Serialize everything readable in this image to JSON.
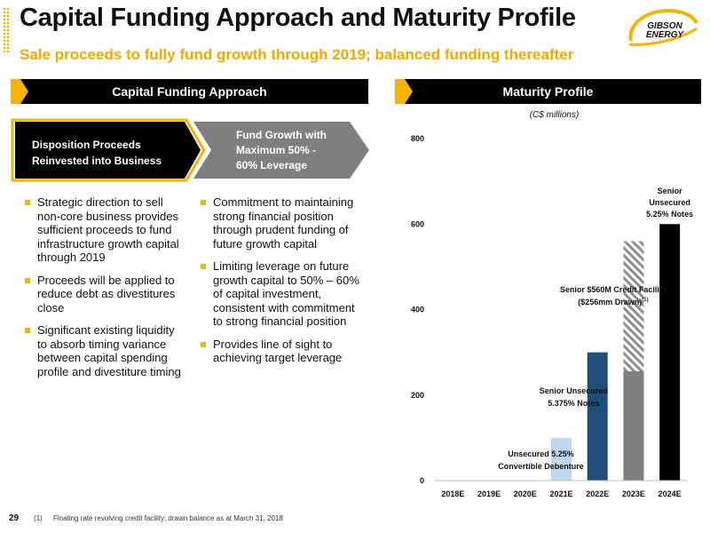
{
  "header": {
    "title": "Capital Funding Approach and Maturity Profile",
    "subtitle": "Sale proceeds to fully fund growth through 2019; balanced funding thereafter",
    "logo_text_1": "GIBSON",
    "logo_text_2": "ENERGY"
  },
  "left_panel": {
    "banner": "Capital Funding Approach",
    "box1_line1": "Disposition Proceeds",
    "box1_line2": "Reinvested into Business",
    "box2_line1": "Fund Growth with",
    "box2_line2": "Maximum 50% -",
    "box2_line3": "60% Leverage",
    "col1_bullets": [
      "Strategic direction to sell non-core business provides sufficient proceeds to fund infrastructure growth capital through 2019",
      "Proceeds will be applied to reduce debt as divestitures close",
      "Significant existing liquidity to absorb timing variance between capital spending profile and divestiture timing"
    ],
    "col2_bullets": [
      "Commitment to maintaining strong financial position through prudent funding of future growth capital",
      "Limiting leverage on future growth capital to 50% – 60% of capital investment, consistent with commitment to strong financial position",
      "Provides line of sight to achieving target leverage"
    ]
  },
  "right_panel": {
    "banner": "Maturity Profile"
  },
  "colors": {
    "accent": "#f5b300",
    "subtitle": "#f5a800",
    "light_blue": "#bdd7ee",
    "navy": "#1f4e79",
    "grey": "#7f7f7f",
    "black": "#000000"
  },
  "chart_data": {
    "type": "bar",
    "subtitle": "(C$ millions)",
    "categories": [
      "2018E",
      "2019E",
      "2020E",
      "2021E",
      "2022E",
      "2023E",
      "2024E"
    ],
    "ylim": [
      0,
      800
    ],
    "yticks": [
      "0",
      "200",
      "400",
      "600",
      "800"
    ],
    "grid": false,
    "bars": [
      {
        "category": "2021E",
        "value": 100,
        "color": "#bdd7ee"
      },
      {
        "category": "2022E",
        "value": 300,
        "color": "#1f4e79"
      },
      {
        "category": "2023E",
        "value": 256,
        "color": "#7f7f7f"
      },
      {
        "category": "2023E",
        "value": 560,
        "color": "#7f7f7f",
        "hatched": true
      },
      {
        "category": "2024E",
        "value": 600,
        "color": "#000000"
      }
    ],
    "annotations": [
      {
        "category": "2021E",
        "lines": [
          "Unsecured 5.25%",
          "Convertible Debenture"
        ]
      },
      {
        "category": "2022E",
        "lines": [
          "Senior Unsecured",
          "5.375% Notes"
        ]
      },
      {
        "category": "2023E",
        "lines": [
          "Senior $560M Credit Facility",
          "($256mm Drawn)"
        ],
        "superscript": "(1)"
      },
      {
        "category": "2024E",
        "lines": [
          "Senior",
          "Unsecured",
          "5.25% Notes"
        ]
      }
    ]
  },
  "footer": {
    "page_number": "29",
    "footnote_marker": "(1)",
    "footnote_text": "Floating rate revolving credit facility; drawn balance as at March 31, 2018"
  }
}
